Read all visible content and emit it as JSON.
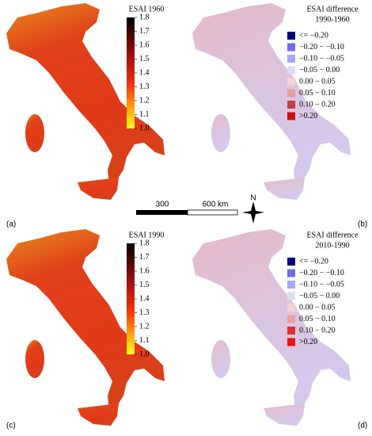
{
  "panels": [
    {
      "label": "(a)",
      "title_lines": [
        "ESAI 1960"
      ],
      "colorbar_ticks": [
        1.8,
        1.7,
        1.6,
        1.5,
        1.4,
        1.3,
        1.2,
        1.1,
        {
          "value": 1,
          "label": "1.0"
        }
      ]
    },
    {
      "label": "(b)",
      "title_lines": [
        "ESAI difference",
        "1990-1960"
      ],
      "legend": [
        {
          "label": "<= −0.20",
          "color": "#00007f"
        },
        {
          "label": "−0.20 − −0.10",
          "color": "#6e6ee8"
        },
        {
          "label": "−0.10 − −0.05",
          "color": "#a8a8f0"
        },
        {
          "label": "−0.05 − 0.00",
          "color": "#dcdcf5"
        },
        {
          "label": "0.00 − 0.05",
          "color": "#f5d2d2"
        },
        {
          "label": "0.05 − 0.10",
          "color": "#e8a0a0"
        },
        {
          "label": "0.10 − 0.20",
          "color": "#c04040"
        },
        {
          "label": ">0.20",
          "color": "#cc1010"
        }
      ]
    },
    {
      "label": "(c)",
      "title_lines": [
        "ESAI 1990"
      ],
      "colorbar_ticks": [
        1.8,
        1.7,
        1.6,
        1.5,
        1.4,
        1.3,
        1.2,
        1.1,
        {
          "value": 1,
          "label": "1.0"
        }
      ]
    },
    {
      "label": "(d)",
      "title_lines": [
        "ESAI difference",
        "2010-1990"
      ],
      "legend": [
        {
          "label": "<= −0.20",
          "color": "#00007f"
        },
        {
          "label": "−0.20 − −0.10",
          "color": "#6e6ee8"
        },
        {
          "label": "−0.10 − −0.05",
          "color": "#a8a8f0"
        },
        {
          "label": "−0.05 − 0.00",
          "color": "#dcdcf5"
        },
        {
          "label": "0.00 − 0.05",
          "color": "#f5d2d2"
        },
        {
          "label": "0.05 − 0.10",
          "color": "#e8a0a0"
        },
        {
          "label": "0.10 − 0.20",
          "color": "#dd3030"
        },
        {
          "label": ">0.20",
          "color": "#ee1010"
        }
      ]
    }
  ],
  "scale_bar": {
    "labels": [
      "300",
      "600 km"
    ]
  },
  "north": "N"
}
